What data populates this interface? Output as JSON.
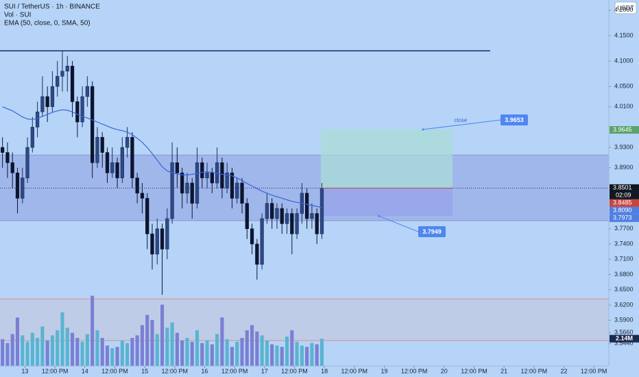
{
  "chart_data": {
    "type": "candlestick",
    "title": "SUI / TetherUS · 1h · BINANCE",
    "volume_title": "Vol · SUI",
    "indicator_title": "EMA (50, close, 0, SMA, 50)",
    "currency": "USDT",
    "xlim": [
      -0.5,
      121.5
    ],
    "ylim": [
      3.5,
      4.22
    ],
    "vlim": [
      0,
      5.9
    ],
    "xticks": [
      {
        "value": 4.5,
        "label": "13"
      },
      {
        "value": 10.5,
        "label": "12:00 PM"
      },
      {
        "value": 16.5,
        "label": "14"
      },
      {
        "value": 22.5,
        "label": "12:00 PM"
      },
      {
        "value": 28.5,
        "label": "15"
      },
      {
        "value": 34.5,
        "label": "12:00 PM"
      },
      {
        "value": 40.5,
        "label": "16"
      },
      {
        "value": 46.5,
        "label": "12:00 PM"
      },
      {
        "value": 52.5,
        "label": "17"
      },
      {
        "value": 58.5,
        "label": "12:00 PM"
      },
      {
        "value": 64.5,
        "label": "18"
      },
      {
        "value": 70.5,
        "label": "12:00 PM"
      },
      {
        "value": 76.5,
        "label": "19"
      },
      {
        "value": 82.5,
        "label": "12:00 PM"
      },
      {
        "value": 88.5,
        "label": "20"
      },
      {
        "value": 94.5,
        "label": "12:00 PM"
      },
      {
        "value": 100.5,
        "label": "21"
      },
      {
        "value": 106.5,
        "label": "12:00 PM"
      },
      {
        "value": 112.5,
        "label": "22"
      },
      {
        "value": 118.5,
        "label": "12:00 PM"
      }
    ],
    "yticks": [
      {
        "value": 4.2,
        "label": "4.2000"
      },
      {
        "value": 4.15,
        "label": "4.1500"
      },
      {
        "value": 4.1,
        "label": "4.1000"
      },
      {
        "value": 4.05,
        "label": "4.0500"
      },
      {
        "value": 4.01,
        "label": "4.0100"
      },
      {
        "value": 3.93,
        "label": "3.9300"
      },
      {
        "value": 3.89,
        "label": "3.8900"
      },
      {
        "value": 3.77,
        "label": "3.7700"
      },
      {
        "value": 3.74,
        "label": "3.7400"
      },
      {
        "value": 3.71,
        "label": "3.7100"
      },
      {
        "value": 3.68,
        "label": "3.6800"
      },
      {
        "value": 3.65,
        "label": "3.6500"
      },
      {
        "value": 3.62,
        "label": "3.6200"
      },
      {
        "value": 3.59,
        "label": "3.5900"
      },
      {
        "value": 3.566,
        "label": "3.5660"
      },
      {
        "value": 3.544,
        "label": "3.5440"
      }
    ],
    "up_color": "#1b2f5c",
    "down_color": "#0c1530",
    "volume_up_color": "#5ab4cf",
    "volume_down_color": "#7b7fd4",
    "open": [
      3.93,
      3.92,
      3.9,
      3.88,
      3.83,
      3.87,
      3.93,
      3.97,
      4.0,
      4.03,
      4.01,
      4.05,
      4.07,
      4.08,
      4.09,
      4.02,
      3.98,
      4.03,
      4.05,
      3.9,
      3.95,
      3.92,
      3.88,
      3.9,
      3.87,
      3.93,
      3.95,
      3.87,
      3.84,
      3.83,
      3.76,
      3.72,
      3.77,
      3.73,
      3.79,
      3.9,
      3.88,
      3.84,
      3.86,
      3.82,
      3.9,
      3.87,
      3.88,
      3.86,
      3.9,
      3.85,
      3.88,
      3.83,
      3.86,
      3.82,
      3.77,
      3.74,
      3.7,
      3.79,
      3.82,
      3.79,
      3.81,
      3.78,
      3.8,
      3.76,
      3.8,
      3.84,
      3.79,
      3.8,
      3.76
    ],
    "high": [
      3.95,
      3.94,
      3.92,
      3.89,
      3.89,
      3.95,
      3.99,
      4.02,
      4.07,
      4.05,
      4.08,
      4.1,
      4.12,
      4.11,
      4.1,
      4.03,
      4.05,
      4.07,
      4.06,
      3.97,
      3.96,
      3.93,
      3.93,
      3.91,
      3.95,
      3.97,
      3.96,
      3.88,
      3.86,
      3.84,
      3.78,
      3.79,
      3.78,
      3.81,
      3.94,
      3.93,
      3.89,
      3.88,
      3.87,
      3.93,
      3.91,
      3.9,
      3.89,
      3.93,
      3.91,
      3.9,
      3.89,
      3.87,
      3.87,
      3.83,
      3.78,
      3.75,
      3.8,
      3.84,
      3.83,
      3.82,
      3.82,
      3.81,
      3.81,
      3.81,
      3.86,
      3.85,
      3.82,
      3.81,
      3.86
    ],
    "low": [
      3.89,
      3.87,
      3.85,
      3.8,
      3.82,
      3.86,
      3.92,
      3.95,
      3.99,
      3.98,
      4.0,
      4.03,
      4.04,
      4.04,
      3.99,
      3.95,
      3.97,
      4.01,
      3.87,
      3.89,
      3.89,
      3.86,
      3.87,
      3.85,
      3.86,
      3.91,
      3.85,
      3.82,
      3.8,
      3.73,
      3.69,
      3.7,
      3.64,
      3.71,
      3.78,
      3.85,
      3.81,
      3.82,
      3.79,
      3.81,
      3.85,
      3.85,
      3.84,
      3.85,
      3.83,
      3.84,
      3.81,
      3.82,
      3.8,
      3.75,
      3.72,
      3.67,
      3.69,
      3.78,
      3.77,
      3.77,
      3.76,
      3.76,
      3.72,
      3.75,
      3.78,
      3.77,
      3.77,
      3.74,
      3.75
    ],
    "close": [
      3.92,
      3.9,
      3.88,
      3.83,
      3.87,
      3.93,
      3.97,
      4.0,
      4.03,
      4.01,
      4.05,
      4.07,
      4.08,
      4.09,
      4.02,
      3.98,
      4.03,
      4.05,
      3.9,
      3.95,
      3.92,
      3.88,
      3.9,
      3.87,
      3.93,
      3.95,
      3.87,
      3.84,
      3.83,
      3.76,
      3.72,
      3.77,
      3.73,
      3.79,
      3.9,
      3.88,
      3.84,
      3.86,
      3.82,
      3.9,
      3.87,
      3.88,
      3.86,
      3.9,
      3.85,
      3.88,
      3.83,
      3.86,
      3.82,
      3.77,
      3.74,
      3.7,
      3.79,
      3.82,
      3.79,
      3.81,
      3.78,
      3.8,
      3.76,
      3.8,
      3.84,
      3.79,
      3.8,
      3.76,
      3.8501
    ],
    "volume": [
      2.1,
      1.8,
      2.5,
      3.8,
      2.4,
      1.9,
      2.6,
      2.2,
      3.1,
      2.0,
      2.4,
      2.8,
      4.2,
      3.0,
      2.6,
      2.2,
      1.9,
      2.5,
      5.5,
      2.8,
      2.2,
      1.6,
      1.4,
      1.5,
      2.0,
      1.8,
      2.2,
      2.4,
      3.2,
      4.0,
      3.6,
      2.5,
      4.8,
      3.0,
      3.4,
      2.6,
      2.0,
      2.2,
      1.9,
      2.8,
      1.8,
      2.0,
      1.7,
      2.5,
      3.8,
      2.1,
      1.5,
      1.9,
      2.2,
      2.8,
      3.2,
      2.7,
      2.4,
      2.0,
      1.7,
      1.6,
      1.5,
      2.3,
      2.8,
      1.9,
      1.6,
      1.5,
      1.8,
      1.7,
      2.14
    ],
    "volume_label": "2.14M",
    "ema": {
      "color": "#3a66d6",
      "values": [
        4.01,
        4.006,
        4.002,
        3.996,
        3.99,
        3.986,
        3.985,
        3.987,
        3.991,
        3.995,
        3.999,
        4.002,
        4.004,
        4.003,
        4.0,
        3.995,
        3.991,
        3.988,
        3.984,
        3.98,
        3.976,
        3.972,
        3.968,
        3.965,
        3.963,
        3.96,
        3.955,
        3.948,
        3.94,
        3.93,
        3.918,
        3.905,
        3.892,
        3.884,
        3.88,
        3.878,
        3.876,
        3.876,
        3.877,
        3.879,
        3.881,
        3.882,
        3.881,
        3.879,
        3.877,
        3.876,
        3.874,
        3.87,
        3.865,
        3.859,
        3.854,
        3.849,
        3.844,
        3.84,
        3.836,
        3.833,
        3.83,
        3.827,
        3.824,
        3.822,
        3.82,
        3.818,
        3.816,
        3.814,
        3.812
      ]
    },
    "hline": {
      "value": 4.12,
      "color": "#1a2a6c"
    },
    "zones": [
      {
        "low": 3.786,
        "high": 3.915,
        "color": "rgba(120,130,215,0.35)",
        "border": "#8d93c9"
      },
      {
        "low": 3.55,
        "high": 3.632,
        "color": "rgba(205,195,210,0.45)",
        "border": "#d9908f"
      }
    ],
    "position": {
      "entry": 3.85,
      "target": 3.9653,
      "stop": 3.7949,
      "annotation": "close",
      "target_color": "rgba(170,220,215,0.75)",
      "stop_color": "rgba(150,160,235,0.7)",
      "label_color": "#4f86f0"
    },
    "price_labels": [
      {
        "value": 3.9645,
        "color": "#5aa36a"
      },
      {
        "value": 3.8501,
        "color": "#131722",
        "countdown": "02:09"
      },
      {
        "value": 3.8485,
        "color": "#c8453f"
      },
      {
        "value": 3.809,
        "label": "3.8090",
        "color": "#4f7fe0"
      },
      {
        "value": 3.7973,
        "color": "#4f7fe0"
      }
    ]
  }
}
